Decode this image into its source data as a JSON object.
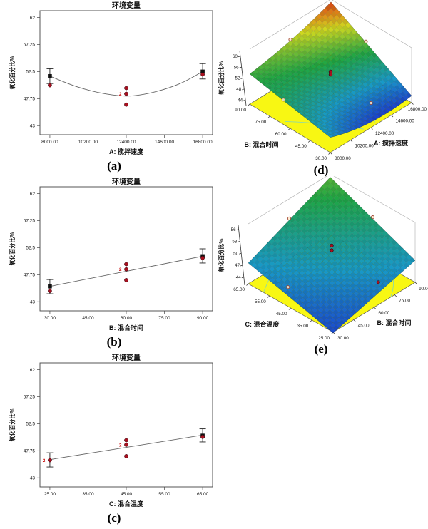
{
  "figure": {
    "background": "#ffffff",
    "description": "Response surface analysis figure with five panels"
  },
  "colors": {
    "run_point": "#a8101f",
    "run_point_edge": "#30000a",
    "predicted_marker": "#111111",
    "error_bar": "#222222",
    "curve": "#666666",
    "frame": "#444444",
    "count_label": "#cc1111",
    "floor": "#f8f713",
    "contour": "#8fd9a8",
    "box_edge": "#aaaaaa",
    "surface_stops": [
      "#1c2ed0",
      "#1899c8",
      "#1fa644",
      "#cfd81f",
      "#e08818",
      "#cf2a12"
    ]
  },
  "chart_data": [
    {
      "id": "a",
      "type": "scatter",
      "kind": "one-factor-2d",
      "caption": "(a)",
      "title": "环境变量",
      "xlabel": "A: 搅拌速度",
      "ylabel": "氧化百分比%",
      "xticks": [
        "8000.00",
        "10200.00",
        "12400.00",
        "14600.00",
        "16800.00"
      ],
      "xtick_values": [
        8000,
        10200,
        12400,
        14600,
        16800
      ],
      "yticks": [
        "43",
        "47.75",
        "52.5",
        "57.25",
        "62"
      ],
      "ytick_values": [
        43,
        47.75,
        52.5,
        57.25,
        62
      ],
      "ylim": [
        41.4,
        63.2
      ],
      "curve": [
        [
          8000,
          51.7
        ],
        [
          9500,
          49.9
        ],
        [
          11000,
          48.7
        ],
        [
          12500,
          48.2
        ],
        [
          14000,
          48.9
        ],
        [
          15500,
          50.4
        ],
        [
          16800,
          52.5
        ]
      ],
      "errorbars": [
        {
          "x": 8000,
          "lo": 50.4,
          "hi": 53.0
        },
        {
          "x": 16800,
          "lo": 51.2,
          "hi": 53.9
        }
      ],
      "squares": [
        {
          "x": 8000,
          "y": 51.7
        },
        {
          "x": 16800,
          "y": 52.5
        }
      ],
      "runs": [
        {
          "x": 8000,
          "y": 50.1
        },
        {
          "x": 12400,
          "y": 49.6
        },
        {
          "x": 12400,
          "y": 48.6,
          "count": "2"
        },
        {
          "x": 12400,
          "y": 46.7
        },
        {
          "x": 16800,
          "y": 52.0
        }
      ]
    },
    {
      "id": "b",
      "type": "scatter",
      "kind": "one-factor-2d",
      "caption": "(b)",
      "title": "环境变量",
      "xlabel": "B: 混合时间",
      "ylabel": "氧化百分比%",
      "xticks": [
        "30.00",
        "45.00",
        "60.00",
        "75.00",
        "90.00"
      ],
      "xtick_values": [
        30,
        45,
        60,
        75,
        90
      ],
      "yticks": [
        "43",
        "47.75",
        "52.5",
        "57.25",
        "62"
      ],
      "ytick_values": [
        43,
        47.75,
        52.5,
        57.25,
        62
      ],
      "ylim": [
        41.4,
        63.2
      ],
      "curve": [
        [
          30,
          45.7
        ],
        [
          90,
          51.0
        ]
      ],
      "errorbars": [
        {
          "x": 30,
          "lo": 44.4,
          "hi": 46.9
        },
        {
          "x": 90,
          "lo": 49.8,
          "hi": 52.3
        }
      ],
      "squares": [
        {
          "x": 30,
          "y": 45.7
        },
        {
          "x": 90,
          "y": 51.0
        }
      ],
      "runs": [
        {
          "x": 30,
          "y": 44.9
        },
        {
          "x": 60,
          "y": 49.6
        },
        {
          "x": 60,
          "y": 48.7,
          "count": "2"
        },
        {
          "x": 60,
          "y": 46.8
        },
        {
          "x": 90,
          "y": 50.7
        }
      ]
    },
    {
      "id": "c",
      "type": "scatter",
      "kind": "one-factor-2d",
      "caption": "(c)",
      "title": "环境变量",
      "xlabel": "C: 混合温度",
      "ylabel": "氧化百分比%",
      "xticks": [
        "25.00",
        "35.00",
        "45.00",
        "55.00",
        "65.00"
      ],
      "xtick_values": [
        25,
        35,
        45,
        55,
        65
      ],
      "yticks": [
        "43",
        "47.75",
        "52.5",
        "57.25",
        "62"
      ],
      "ytick_values": [
        43,
        47.75,
        52.5,
        57.25,
        62
      ],
      "ylim": [
        41.4,
        63.2
      ],
      "curve": [
        [
          25,
          46.2
        ],
        [
          65,
          50.5
        ]
      ],
      "errorbars": [
        {
          "x": 25,
          "lo": 44.9,
          "hi": 47.4
        },
        {
          "x": 65,
          "lo": 49.3,
          "hi": 51.6
        }
      ],
      "squares": [
        {
          "x": 65,
          "y": 50.4
        }
      ],
      "runs": [
        {
          "x": 25,
          "y": 46.1,
          "count": "2"
        },
        {
          "x": 45,
          "y": 49.6
        },
        {
          "x": 45,
          "y": 48.8,
          "count": "2"
        },
        {
          "x": 45,
          "y": 46.8
        },
        {
          "x": 65,
          "y": 50.2
        }
      ]
    },
    {
      "id": "d",
      "type": "surface3d",
      "kind": "surface-3d",
      "caption": "(d)",
      "zlabel": "氧化百分比%",
      "zticks": [
        "44",
        "48",
        "52",
        "56",
        "60"
      ],
      "ztick_values": [
        44,
        48,
        52,
        56,
        60
      ],
      "axis_left": {
        "label": "B: 混合时间",
        "ticks": [
          "90.00",
          "75.00",
          "60.00",
          "45.00",
          "30.00"
        ],
        "values": [
          90,
          75,
          60,
          45,
          30
        ]
      },
      "axis_right": {
        "label": "A: 搅拌速度",
        "ticks": [
          "8000.00",
          "10200.00",
          "12400.00",
          "14600.00",
          "16800.00"
        ],
        "values": [
          8000,
          10200,
          12400,
          14600,
          16800
        ]
      },
      "surface": {
        "front": 47.5,
        "right": 44.5,
        "left": 53.0,
        "back": 61.0,
        "dip": 8,
        "dip_fade": 0.5
      },
      "cmap_domain": [
        43,
        61.5
      ],
      "points": {
        "open_surface": [
          [
            12400,
            90
          ],
          [
            16800,
            64
          ]
        ],
        "open_floor": [
          [
            10200,
            80
          ],
          [
            14600,
            45
          ]
        ],
        "filled_floor": [],
        "center": {
          "u": 12400,
          "v": 60,
          "z": [
            53.6,
            52.5
          ]
        }
      }
    },
    {
      "id": "e",
      "type": "surface3d",
      "kind": "surface-3d",
      "caption": "(e)",
      "zlabel": "氧化百分比%",
      "zticks": [
        "44",
        "47",
        "50",
        "53",
        "56"
      ],
      "ztick_values": [
        44,
        47,
        50,
        53,
        56
      ],
      "axis_left": {
        "label": "C: 混合温度",
        "ticks": [
          "65.00",
          "55.00",
          "45.00",
          "35.00",
          "25.00"
        ],
        "values": [
          65,
          55,
          45,
          35,
          25
        ]
      },
      "axis_right": {
        "label": "B: 混合时间",
        "ticks": [
          "30.00",
          "45.00",
          "60.00",
          "75.00",
          "90.00"
        ],
        "values": [
          30,
          45,
          60,
          75,
          90
        ]
      },
      "surface": {
        "front": 41.8,
        "right": 47.5,
        "left": 47.2,
        "back": 56.2,
        "dip": 0,
        "dip_fade": 0
      },
      "cmap_domain": [
        40,
        68
      ],
      "points": {
        "open_surface": [
          [
            60,
            65
          ],
          [
            90,
            45
          ]
        ],
        "open_floor": [
          [
            42,
            54
          ]
        ],
        "filled_floor": [
          [
            77,
            34
          ]
        ],
        "center": {
          "u": 60,
          "v": 45,
          "z": [
            51.4,
            50.2
          ]
        }
      }
    }
  ]
}
